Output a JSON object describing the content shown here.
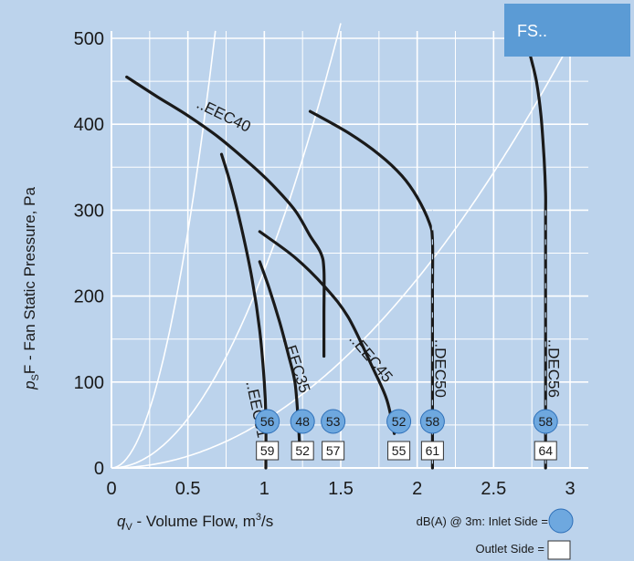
{
  "colors": {
    "panel": "#bcd3ec",
    "grid": "#ffffff",
    "curve": "#1a1a1a",
    "inlet_badge": "#6ea8df",
    "outlet_badge": "#ffffff",
    "tag": "#5b9bd5",
    "system_lines": "#ffffff"
  },
  "tag": {
    "label": "FS.."
  },
  "chart_data": {
    "type": "line",
    "x_axis": {
      "label": "q",
      "label_sub": "V",
      "label_rest": " - Volume Flow, m",
      "label_sup": "3",
      "label_end": "/s",
      "range": [
        0,
        3
      ],
      "ticks": [
        "0",
        "0.5",
        "1",
        "1.5",
        "2",
        "2.5",
        "3"
      ]
    },
    "y_axis": {
      "label": "p",
      "label_sub": "S",
      "label_rest": "F - Fan Static Pressure, Pa",
      "range": [
        0,
        500
      ],
      "ticks": [
        "0",
        "100",
        "200",
        "300",
        "400",
        "500"
      ]
    },
    "grid": true,
    "series": [
      {
        "name": "..EEC40",
        "points": [
          [
            0.1,
            455
          ],
          [
            0.3,
            432
          ],
          [
            0.5,
            410
          ],
          [
            0.7,
            385
          ],
          [
            0.9,
            355
          ],
          [
            1.05,
            330
          ],
          [
            1.2,
            300
          ],
          [
            1.3,
            270
          ],
          [
            1.37,
            250
          ],
          [
            1.39,
            230
          ],
          [
            1.39,
            180
          ],
          [
            1.39,
            130
          ]
        ],
        "dB_inlet": "53",
        "dB_outlet": "57",
        "badge_x": 1.45
      },
      {
        "name": "..EEC31",
        "points": [
          [
            0.72,
            365
          ],
          [
            0.78,
            330
          ],
          [
            0.85,
            280
          ],
          [
            0.92,
            220
          ],
          [
            0.97,
            160
          ],
          [
            1.0,
            100
          ],
          [
            1.01,
            60
          ],
          [
            1.01,
            0
          ]
        ],
        "dB_inlet": "56",
        "dB_outlet": "59",
        "badge_x": 1.02
      },
      {
        "name": "..EEC35",
        "points": [
          [
            0.97,
            240
          ],
          [
            1.03,
            210
          ],
          [
            1.1,
            170
          ],
          [
            1.16,
            130
          ],
          [
            1.2,
            100
          ],
          [
            1.22,
            60
          ],
          [
            1.23,
            30
          ]
        ],
        "dB_inlet": "48",
        "dB_outlet": "52",
        "badge_x": 1.25
      },
      {
        "name": "..EEC45",
        "points": [
          [
            0.97,
            275
          ],
          [
            1.2,
            245
          ],
          [
            1.4,
            210
          ],
          [
            1.55,
            175
          ],
          [
            1.7,
            120
          ],
          [
            1.8,
            80
          ],
          [
            1.85,
            40
          ]
        ],
        "dB_inlet": "52",
        "dB_outlet": "55",
        "badge_x": 1.88
      },
      {
        "name": "..DEC50",
        "points": [
          [
            1.3,
            415
          ],
          [
            1.55,
            390
          ],
          [
            1.75,
            365
          ],
          [
            1.9,
            340
          ],
          [
            2.0,
            315
          ],
          [
            2.08,
            285
          ],
          [
            2.1,
            265
          ],
          [
            2.1,
            200
          ],
          [
            2.1,
            100
          ],
          [
            2.1,
            0
          ]
        ],
        "dB_inlet": "58",
        "dB_outlet": "61",
        "badge_x": 2.1
      },
      {
        "name": "..DEC56",
        "points": [
          [
            2.74,
            480
          ],
          [
            2.78,
            450
          ],
          [
            2.81,
            410
          ],
          [
            2.83,
            360
          ],
          [
            2.84,
            320
          ],
          [
            2.84,
            290
          ],
          [
            2.84,
            200
          ],
          [
            2.84,
            100
          ],
          [
            2.84,
            0
          ]
        ],
        "dB_inlet": "58",
        "dB_outlet": "64",
        "badge_x": 2.84
      }
    ],
    "system_curves_k": [
      1100,
      230,
      55
    ]
  },
  "legend": {
    "inlet_label": "dB(A) @ 3m: Inlet Side  =",
    "outlet_label": "Outlet Side ="
  }
}
